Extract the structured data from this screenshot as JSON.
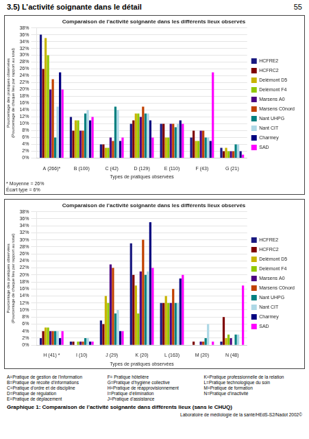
{
  "title": "3.5) L’activité soignante dans le détail",
  "page_number": "55",
  "caption": "Graphique 1: Comparaison de l’activité soignante dans différents lieux (sans le CHUQ)",
  "footer": "Laboratoire de médiologie de la santé/HEdS-S2/Nadot 2002©",
  "annotations": [
    "A=Pratique de gestion de l’information",
    "B=Pratique de récolte d’informations",
    "C=Pratique d’ordre et de discipline",
    "D=Pratique de régulation",
    "E=Pratique de déplacement",
    "F= Pratique hôtelière",
    "G=Pratique d’hygiène collective",
    "H=Pratique de réapprovisionnement",
    "I=Pratique d’élimination",
    "J=Pratique d’assistance",
    "K=Pratique professionnelle de la relation",
    "L=Pratique technologique du soin",
    "M=Pratique de formation",
    "N=Pratique d’inactivité"
  ],
  "chart_data": [
    {
      "type": "bar",
      "title": "Comparaison de l’activité soignante dans les différents lieux observés",
      "xlabel": "Types de pratiques observées",
      "ylabel": "Pourcentage des pratiques observées\n(Pourcentage de chaque lieu par rapport au total)",
      "annotations": [
        "* Moyenne = 26%\nÉcart type = 6%"
      ],
      "categories": [
        "A (266)*",
        "B (100)",
        "C (42)",
        "D (129)",
        "E (110)",
        "F (43)",
        "G (21)"
      ],
      "series": [
        {
          "name": "HCFRE2",
          "color": "#191980",
          "values": [
            36,
            12,
            4,
            10,
            10,
            6,
            3
          ]
        },
        {
          "name": "HCFRC2",
          "color": "#7f0000",
          "values": [
            26,
            8,
            4,
            11,
            10,
            8,
            2
          ]
        },
        {
          "name": "Delémont D5",
          "color": "#c8b400",
          "values": [
            35,
            11,
            3,
            13,
            6,
            5,
            3
          ]
        },
        {
          "name": "Delémont F4",
          "color": "#90c800",
          "values": [
            30,
            11,
            3,
            13,
            6,
            5,
            2
          ]
        },
        {
          "name": "Marsens A0",
          "color": "#4b0082",
          "values": [
            20,
            8,
            6,
            12,
            10,
            8,
            2
          ]
        },
        {
          "name": "Marsens C0nord",
          "color": "#c04000",
          "values": [
            23,
            8,
            5,
            15,
            10,
            8,
            2
          ]
        },
        {
          "name": "Nant UHPG",
          "color": "#008080",
          "values": [
            6,
            13,
            15,
            13,
            9,
            6,
            4
          ]
        },
        {
          "name": "Nant CIT",
          "color": "#add8e6",
          "values": [
            15,
            14,
            14,
            13,
            10,
            6,
            4
          ]
        },
        {
          "name": "Charmey",
          "color": "#000080",
          "values": [
            25,
            11,
            5,
            11,
            11,
            5,
            2
          ]
        },
        {
          "name": "SAD",
          "color": "#ff00ff",
          "values": [
            20,
            12,
            6,
            6,
            10,
            25,
            1
          ]
        }
      ],
      "ylim": [
        0,
        38
      ],
      "yticks": [
        {
          "value": 0,
          "label": "0%"
        },
        {
          "value": 2,
          "label": "2%"
        },
        {
          "value": 4,
          "label": "4%"
        },
        {
          "value": 6,
          "label": "6%"
        },
        {
          "value": 8,
          "label": "8%"
        },
        {
          "value": 10,
          "label": "10%"
        },
        {
          "value": 12,
          "label": "12%"
        },
        {
          "value": 14,
          "label": "14%"
        },
        {
          "value": 16,
          "label": "16%"
        },
        {
          "value": 18,
          "label": "18%"
        },
        {
          "value": 20,
          "label": "20%"
        },
        {
          "value": 22,
          "label": "22%"
        },
        {
          "value": 24,
          "label": "24%"
        },
        {
          "value": 26,
          "label": "26%"
        },
        {
          "value": 28,
          "label": "28%"
        },
        {
          "value": 30,
          "label": "30%"
        },
        {
          "value": 32,
          "label": "32%"
        },
        {
          "value": 34,
          "label": "34%"
        },
        {
          "value": 36,
          "label": "36%"
        },
        {
          "value": 38,
          "label": "38%"
        }
      ],
      "grid": true,
      "legend": "right"
    },
    {
      "type": "bar",
      "title": "Comparaison de l’activité soignante dans les différents lieux observés",
      "xlabel": "Types de pratiques observées",
      "ylabel": "Pourcentage des pratiques observées\n(Pourcentage de chaque lieu par rapport au total)",
      "categories": [
        "H (41) *",
        "I (10)",
        "J (29)",
        "K (20)",
        "L (163)",
        "M (20)",
        "N (48)"
      ],
      "series": [
        {
          "name": "HCFRE2",
          "color": "#191980",
          "values": [
            2,
            1,
            7,
            29,
            12,
            0,
            1
          ]
        },
        {
          "name": "HCFRC2",
          "color": "#7f0000",
          "values": [
            4,
            1,
            6,
            20,
            12,
            1,
            8
          ]
        },
        {
          "name": "Delémont D5",
          "color": "#c8b400",
          "values": [
            5,
            0,
            14,
            17,
            14,
            0,
            2
          ]
        },
        {
          "name": "Delémont F4",
          "color": "#90c800",
          "values": [
            5,
            1,
            12,
            9,
            12,
            0,
            3
          ]
        },
        {
          "name": "Marsens A0",
          "color": "#4b0082",
          "values": [
            4,
            1,
            23,
            21,
            12,
            1,
            2
          ]
        },
        {
          "name": "Marsens C0nord",
          "color": "#c04000",
          "values": [
            4,
            1,
            22,
            30,
            16,
            1,
            0
          ]
        },
        {
          "name": "Nant UHPG",
          "color": "#008080",
          "values": [
            4,
            2,
            9,
            20,
            12,
            2,
            3
          ]
        },
        {
          "name": "Nant CIT",
          "color": "#add8e6",
          "values": [
            4,
            2,
            10,
            21,
            12,
            6,
            3
          ]
        },
        {
          "name": "Charmey",
          "color": "#000080",
          "values": [
            2,
            1,
            4,
            35,
            19,
            0,
            0
          ]
        },
        {
          "name": "SAD",
          "color": "#ff00ff",
          "values": [
            4,
            1,
            4,
            22,
            20,
            1,
            17
          ]
        }
      ],
      "ylim": [
        0,
        38
      ],
      "yticks": [
        {
          "value": 0,
          "label": "0%"
        },
        {
          "value": 2,
          "label": "2%"
        },
        {
          "value": 4,
          "label": "4%"
        },
        {
          "value": 6,
          "label": "6%"
        },
        {
          "value": 8,
          "label": "8%"
        },
        {
          "value": 10,
          "label": "10%"
        },
        {
          "value": 12,
          "label": "12%"
        },
        {
          "value": 14,
          "label": "14%"
        },
        {
          "value": 16,
          "label": "16%"
        },
        {
          "value": 18,
          "label": "18%"
        },
        {
          "value": 20,
          "label": "20%"
        },
        {
          "value": 22,
          "label": "22%"
        },
        {
          "value": 24,
          "label": "24%"
        },
        {
          "value": 26,
          "label": "26%"
        },
        {
          "value": 28,
          "label": "28%"
        },
        {
          "value": 30,
          "label": "30%"
        },
        {
          "value": 32,
          "label": "32%"
        },
        {
          "value": 34,
          "label": "34%"
        },
        {
          "value": 36,
          "label": "36%"
        },
        {
          "value": 38,
          "label": "38%"
        }
      ],
      "grid": true,
      "legend": "right"
    }
  ]
}
